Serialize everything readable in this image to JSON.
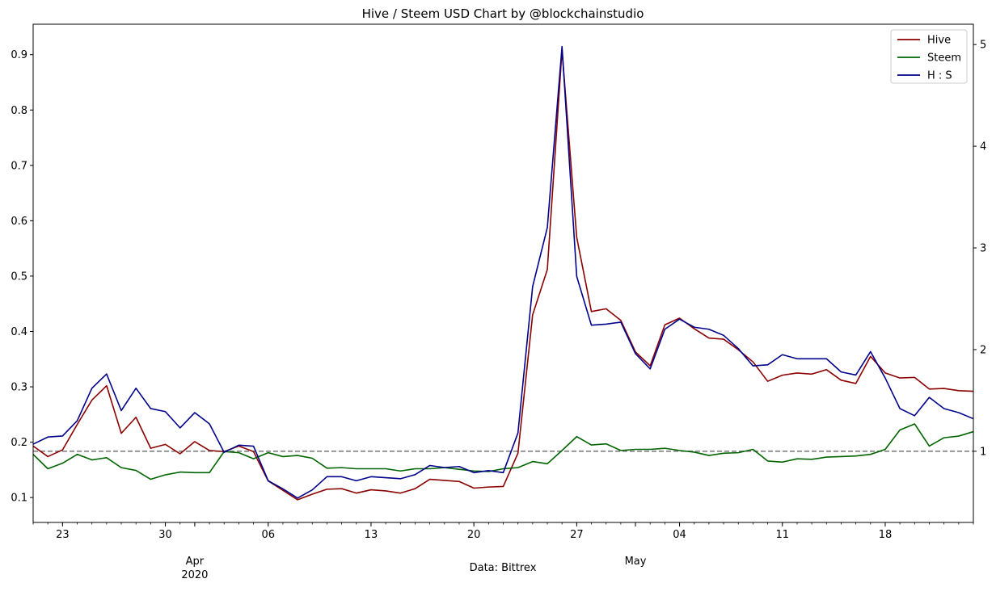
{
  "chart_data": {
    "type": "line",
    "title": "Hive / Steem USD Chart by @blockchainstudio",
    "xlabel": "Data: Bittrex",
    "x_start": "2020-03-21",
    "x_end": "2020-05-24",
    "x_major_ticks": [
      {
        "date": "2020-03-23",
        "label": "23"
      },
      {
        "date": "2020-03-30",
        "label": "30"
      },
      {
        "date": "2020-04-06",
        "label": "06"
      },
      {
        "date": "2020-04-13",
        "label": "13"
      },
      {
        "date": "2020-04-20",
        "label": "20"
      },
      {
        "date": "2020-04-27",
        "label": "27"
      },
      {
        "date": "2020-05-04",
        "label": "04"
      },
      {
        "date": "2020-05-11",
        "label": "11"
      },
      {
        "date": "2020-05-18",
        "label": "18"
      }
    ],
    "x_month_labels": [
      {
        "date": "2020-04-01",
        "label": "Apr",
        "sublabel": "2020"
      },
      {
        "date": "2020-05-01",
        "label": "May",
        "sublabel": ""
      }
    ],
    "y_left": {
      "lim": [
        0.055,
        0.955
      ],
      "ticks": [
        0.1,
        0.2,
        0.3,
        0.4,
        0.5,
        0.6,
        0.7,
        0.8,
        0.9
      ],
      "tick_labels": [
        "0.1",
        "0.2",
        "0.3",
        "0.4",
        "0.5",
        "0.6",
        "0.7",
        "0.8",
        "0.9"
      ]
    },
    "y_right": {
      "lim": [
        0.3,
        5.2
      ],
      "ticks": [
        1,
        2,
        3,
        4,
        5
      ],
      "tick_labels": [
        "1",
        "2",
        "3",
        "4",
        "5"
      ]
    },
    "reference_line": {
      "axis": "right",
      "value": 1.0,
      "color": "#808080",
      "style": "dashed"
    },
    "legend_position": "top-right",
    "dates": [
      "2020-03-21",
      "2020-03-22",
      "2020-03-23",
      "2020-03-24",
      "2020-03-25",
      "2020-03-26",
      "2020-03-27",
      "2020-03-28",
      "2020-03-29",
      "2020-03-30",
      "2020-03-31",
      "2020-04-01",
      "2020-04-02",
      "2020-04-03",
      "2020-04-04",
      "2020-04-05",
      "2020-04-06",
      "2020-04-07",
      "2020-04-08",
      "2020-04-09",
      "2020-04-10",
      "2020-04-11",
      "2020-04-12",
      "2020-04-13",
      "2020-04-14",
      "2020-04-15",
      "2020-04-16",
      "2020-04-17",
      "2020-04-18",
      "2020-04-19",
      "2020-04-20",
      "2020-04-21",
      "2020-04-22",
      "2020-04-23",
      "2020-04-24",
      "2020-04-25",
      "2020-04-26",
      "2020-04-27",
      "2020-04-28",
      "2020-04-29",
      "2020-04-30",
      "2020-05-01",
      "2020-05-02",
      "2020-05-03",
      "2020-05-04",
      "2020-05-05",
      "2020-05-06",
      "2020-05-07",
      "2020-05-08",
      "2020-05-09",
      "2020-05-10",
      "2020-05-11",
      "2020-05-12",
      "2020-05-13",
      "2020-05-14",
      "2020-05-15",
      "2020-05-16",
      "2020-05-17",
      "2020-05-18",
      "2020-05-19",
      "2020-05-20",
      "2020-05-21",
      "2020-05-22",
      "2020-05-23",
      "2020-05-24"
    ],
    "series": [
      {
        "name": "Hive",
        "color": "#8b0000",
        "axis": "left",
        "values": [
          0.193,
          0.174,
          0.186,
          0.232,
          0.276,
          0.302,
          0.216,
          0.245,
          0.189,
          0.196,
          0.179,
          0.201,
          0.185,
          0.183,
          0.193,
          0.183,
          0.13,
          0.113,
          0.096,
          0.106,
          0.115,
          0.116,
          0.108,
          0.114,
          0.112,
          0.108,
          0.116,
          0.133,
          0.131,
          0.129,
          0.117,
          0.119,
          0.12,
          0.18,
          0.43,
          0.512,
          0.908,
          0.57,
          0.436,
          0.441,
          0.42,
          0.363,
          0.338,
          0.412,
          0.424,
          0.405,
          0.388,
          0.386,
          0.367,
          0.345,
          0.31,
          0.321,
          0.325,
          0.323,
          0.331,
          0.312,
          0.306,
          0.355,
          0.325,
          0.316,
          0.317,
          0.296,
          0.297,
          0.293,
          0.292
        ]
      },
      {
        "name": "Steem",
        "color": "#006400",
        "axis": "left",
        "values": [
          0.178,
          0.152,
          0.162,
          0.178,
          0.168,
          0.172,
          0.154,
          0.149,
          0.133,
          0.141,
          0.146,
          0.145,
          0.145,
          0.183,
          0.181,
          0.17,
          0.181,
          0.174,
          0.176,
          0.171,
          0.153,
          0.154,
          0.152,
          0.152,
          0.152,
          0.148,
          0.152,
          0.152,
          0.154,
          0.151,
          0.148,
          0.147,
          0.152,
          0.154,
          0.165,
          0.161,
          0.185,
          0.21,
          0.195,
          0.197,
          0.185,
          0.187,
          0.187,
          0.189,
          0.185,
          0.182,
          0.176,
          0.18,
          0.181,
          0.187,
          0.166,
          0.164,
          0.17,
          0.169,
          0.173,
          0.174,
          0.175,
          0.178,
          0.187,
          0.222,
          0.233,
          0.193,
          0.208,
          0.211,
          0.219
        ]
      },
      {
        "name": "H : S",
        "color": "#00008b",
        "axis": "right",
        "values": [
          1.07,
          1.14,
          1.15,
          1.3,
          1.62,
          1.76,
          1.4,
          1.62,
          1.42,
          1.39,
          1.23,
          1.38,
          1.27,
          0.99,
          1.06,
          1.05,
          0.71,
          0.63,
          0.54,
          0.62,
          0.75,
          0.75,
          0.71,
          0.75,
          0.74,
          0.73,
          0.77,
          0.86,
          0.84,
          0.85,
          0.79,
          0.81,
          0.79,
          1.18,
          2.62,
          3.2,
          4.98,
          2.72,
          2.24,
          2.25,
          2.27,
          1.96,
          1.81,
          2.2,
          2.3,
          2.22,
          2.2,
          2.14,
          2.01,
          1.84,
          1.85,
          1.95,
          1.91,
          1.91,
          1.91,
          1.78,
          1.75,
          1.98,
          1.72,
          1.42,
          1.35,
          1.53,
          1.42,
          1.38,
          1.32
        ]
      }
    ]
  }
}
